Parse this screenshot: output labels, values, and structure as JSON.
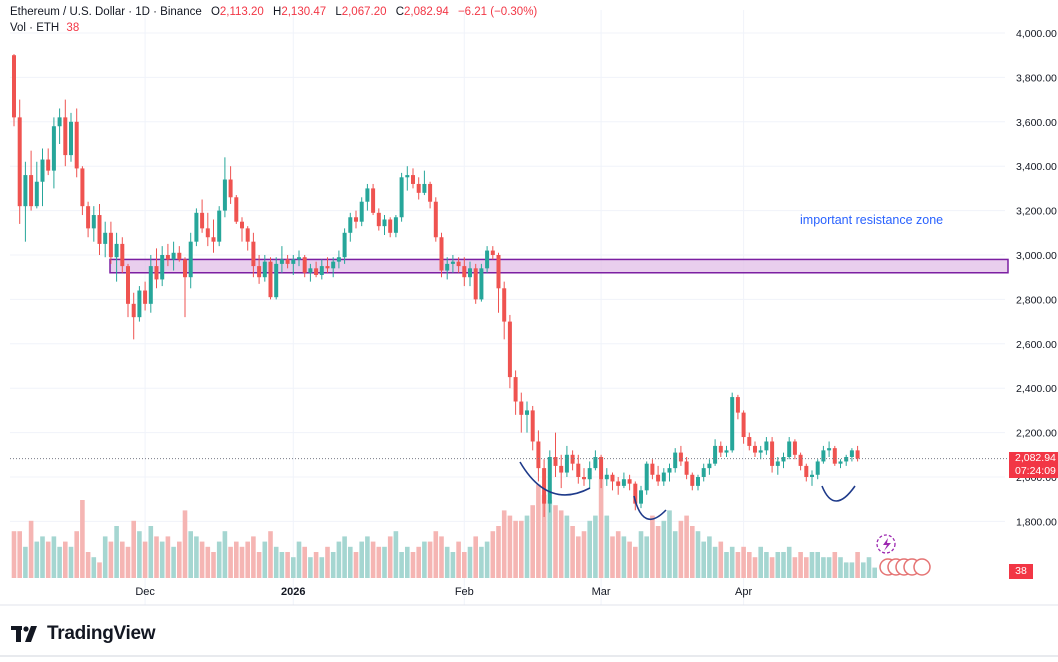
{
  "header": {
    "symbol": "Ethereum / U.S. Dollar · 1D · Binance",
    "o_label": "O",
    "o_value": "2,113.20",
    "h_label": "H",
    "h_value": "2,130.47",
    "l_label": "L",
    "l_value": "2,067.20",
    "c_label": "C",
    "c_value": "2,082.94",
    "change": "−6.21 (−0.30%)",
    "vol_label": "Vol · ETH",
    "vol_value": "38"
  },
  "annotation": "important resistance zone",
  "last_price_label": "2,082.94",
  "countdown_label": "07:24:09",
  "volume_label": "38",
  "brand": "TradingView",
  "colors": {
    "up": "#26a69a",
    "down": "#ef5350",
    "zone_border": "#7b1fa2",
    "zone_fill": "#e1bee7",
    "annotation": "#2962ff",
    "curve": "#1e3a8a"
  },
  "chart_data": {
    "type": "candlestick",
    "title": "Ethereum / U.S. Dollar · 1D · Binance",
    "y_axis": {
      "ticks": [
        "1,800.00",
        "2,000.00",
        "2,200.00",
        "2,400.00",
        "2,600.00",
        "2,800.00",
        "3,000.00",
        "3,200.00",
        "3,400.00",
        "3,600.00",
        "3,800.00",
        "4,000.00"
      ],
      "range": [
        1560,
        4020
      ]
    },
    "x_axis": {
      "labels": [
        "Dec",
        "2026",
        "Feb",
        "Mar",
        "Apr"
      ]
    },
    "grid": true,
    "series_ohlc": [
      [
        3900,
        3905,
        3580,
        3620
      ],
      [
        3620,
        3700,
        3140,
        3220
      ],
      [
        3220,
        3420,
        3060,
        3360
      ],
      [
        3360,
        3470,
        3200,
        3220
      ],
      [
        3220,
        3420,
        3210,
        3330
      ],
      [
        3330,
        3480,
        3220,
        3430
      ],
      [
        3430,
        3480,
        3360,
        3380
      ],
      [
        3380,
        3620,
        3300,
        3580
      ],
      [
        3580,
        3660,
        3500,
        3620
      ],
      [
        3620,
        3700,
        3400,
        3450
      ],
      [
        3450,
        3640,
        3420,
        3600
      ],
      [
        3600,
        3660,
        3350,
        3390
      ],
      [
        3390,
        3400,
        3180,
        3220
      ],
      [
        3220,
        3240,
        3080,
        3120
      ],
      [
        3120,
        3220,
        3060,
        3180
      ],
      [
        3180,
        3230,
        3000,
        3050
      ],
      [
        3050,
        3150,
        2990,
        3100
      ],
      [
        3100,
        3150,
        2960,
        2990
      ],
      [
        2990,
        3100,
        2880,
        3050
      ],
      [
        3050,
        3080,
        2920,
        2950
      ],
      [
        2950,
        2960,
        2720,
        2780
      ],
      [
        2780,
        2830,
        2620,
        2720
      ],
      [
        2720,
        2860,
        2700,
        2840
      ],
      [
        2840,
        2880,
        2750,
        2780
      ],
      [
        2780,
        3000,
        2740,
        2950
      ],
      [
        2950,
        3030,
        2850,
        2890
      ],
      [
        2890,
        3040,
        2860,
        3000
      ],
      [
        3000,
        3050,
        2950,
        2980
      ],
      [
        2980,
        3060,
        2930,
        3010
      ],
      [
        3010,
        3040,
        2970,
        2980
      ],
      [
        2980,
        2990,
        2720,
        2900
      ],
      [
        2900,
        3100,
        2850,
        3060
      ],
      [
        3060,
        3210,
        3040,
        3190
      ],
      [
        3190,
        3250,
        3100,
        3120
      ],
      [
        3120,
        3190,
        3040,
        3080
      ],
      [
        3080,
        3160,
        3010,
        3060
      ],
      [
        3060,
        3220,
        3040,
        3200
      ],
      [
        3200,
        3440,
        3170,
        3340
      ],
      [
        3340,
        3400,
        3230,
        3260
      ],
      [
        3260,
        3270,
        3140,
        3150
      ],
      [
        3150,
        3170,
        3060,
        3120
      ],
      [
        3120,
        3130,
        3020,
        3060
      ],
      [
        3060,
        3100,
        2900,
        2950
      ],
      [
        2950,
        3000,
        2870,
        2900
      ],
      [
        2900,
        3000,
        2880,
        2970
      ],
      [
        2970,
        2990,
        2800,
        2810
      ],
      [
        2810,
        2990,
        2800,
        2960
      ],
      [
        2960,
        3040,
        2920,
        2980
      ],
      [
        2980,
        3000,
        2940,
        2960
      ],
      [
        2960,
        3000,
        2910,
        2980
      ],
      [
        2980,
        3020,
        2950,
        2990
      ],
      [
        2990,
        3000,
        2900,
        2920
      ],
      [
        2920,
        2960,
        2880,
        2940
      ],
      [
        2940,
        2970,
        2900,
        2910
      ],
      [
        2910,
        2980,
        2890,
        2950
      ],
      [
        2950,
        2990,
        2920,
        2940
      ],
      [
        2940,
        2990,
        2900,
        2970
      ],
      [
        2970,
        3020,
        2940,
        2990
      ],
      [
        2990,
        3120,
        2960,
        3100
      ],
      [
        3100,
        3190,
        3060,
        3170
      ],
      [
        3170,
        3200,
        3120,
        3150
      ],
      [
        3150,
        3260,
        3130,
        3240
      ],
      [
        3240,
        3320,
        3200,
        3300
      ],
      [
        3300,
        3320,
        3180,
        3190
      ],
      [
        3190,
        3210,
        3110,
        3130
      ],
      [
        3130,
        3180,
        3090,
        3160
      ],
      [
        3160,
        3170,
        3080,
        3100
      ],
      [
        3100,
        3180,
        3080,
        3170
      ],
      [
        3170,
        3370,
        3150,
        3350
      ],
      [
        3350,
        3400,
        3290,
        3360
      ],
      [
        3360,
        3390,
        3300,
        3320
      ],
      [
        3320,
        3350,
        3250,
        3280
      ],
      [
        3280,
        3380,
        3270,
        3320
      ],
      [
        3320,
        3330,
        3210,
        3240
      ],
      [
        3240,
        3260,
        3060,
        3080
      ],
      [
        3080,
        3100,
        2900,
        2930
      ],
      [
        2930,
        2990,
        2890,
        2960
      ],
      [
        2960,
        3000,
        2920,
        2970
      ],
      [
        2970,
        2990,
        2920,
        2950
      ],
      [
        2950,
        2990,
        2860,
        2900
      ],
      [
        2900,
        2970,
        2860,
        2940
      ],
      [
        2940,
        2960,
        2780,
        2800
      ],
      [
        2800,
        2960,
        2790,
        2940
      ],
      [
        2940,
        3040,
        2920,
        3020
      ],
      [
        3020,
        3040,
        2980,
        3000
      ],
      [
        3000,
        3010,
        2740,
        2850
      ],
      [
        2850,
        2880,
        2620,
        2700
      ],
      [
        2700,
        2730,
        2400,
        2450
      ],
      [
        2450,
        2480,
        2280,
        2340
      ],
      [
        2340,
        2380,
        2200,
        2280
      ],
      [
        2280,
        2340,
        2200,
        2300
      ],
      [
        2300,
        2320,
        2120,
        2160
      ],
      [
        2160,
        2210,
        1980,
        2040
      ],
      [
        2040,
        2080,
        1820,
        1880
      ],
      [
        1880,
        2120,
        1840,
        2090
      ],
      [
        2090,
        2200,
        2000,
        2050
      ],
      [
        2050,
        2100,
        1950,
        2020
      ],
      [
        2020,
        2140,
        2000,
        2100
      ],
      [
        2100,
        2120,
        2030,
        2060
      ],
      [
        2060,
        2100,
        1970,
        2000
      ],
      [
        2000,
        2040,
        1960,
        1990
      ],
      [
        1990,
        2070,
        1950,
        2040
      ],
      [
        2040,
        2120,
        2030,
        2090
      ],
      [
        2090,
        2100,
        1950,
        1990
      ],
      [
        1990,
        2040,
        1960,
        2010
      ],
      [
        2010,
        2020,
        1940,
        1980
      ],
      [
        1980,
        2000,
        1920,
        1960
      ],
      [
        1960,
        2020,
        1950,
        1990
      ],
      [
        1990,
        2010,
        1940,
        1970
      ],
      [
        1970,
        1980,
        1850,
        1880
      ],
      [
        1880,
        1960,
        1860,
        1940
      ],
      [
        1940,
        2070,
        1920,
        2060
      ],
      [
        2060,
        2080,
        1990,
        2010
      ],
      [
        2010,
        2050,
        1960,
        1980
      ],
      [
        1980,
        2040,
        1960,
        2020
      ],
      [
        2020,
        2060,
        1980,
        2040
      ],
      [
        2040,
        2130,
        2020,
        2110
      ],
      [
        2110,
        2140,
        2050,
        2070
      ],
      [
        2070,
        2090,
        1990,
        2010
      ],
      [
        2010,
        2020,
        1940,
        1960
      ],
      [
        1960,
        2010,
        1940,
        2000
      ],
      [
        2000,
        2060,
        1980,
        2040
      ],
      [
        2040,
        2080,
        2010,
        2060
      ],
      [
        2060,
        2170,
        2050,
        2140
      ],
      [
        2140,
        2160,
        2090,
        2110
      ],
      [
        2110,
        2140,
        2090,
        2120
      ],
      [
        2120,
        2380,
        2110,
        2360
      ],
      [
        2360,
        2370,
        2260,
        2290
      ],
      [
        2290,
        2300,
        2150,
        2180
      ],
      [
        2180,
        2200,
        2120,
        2140
      ],
      [
        2140,
        2160,
        2090,
        2110
      ],
      [
        2110,
        2140,
        2080,
        2120
      ],
      [
        2120,
        2180,
        2100,
        2160
      ],
      [
        2160,
        2180,
        2020,
        2050
      ],
      [
        2050,
        2090,
        2010,
        2070
      ],
      [
        2070,
        2110,
        2040,
        2090
      ],
      [
        2090,
        2180,
        2080,
        2160
      ],
      [
        2160,
        2170,
        2080,
        2100
      ],
      [
        2100,
        2110,
        2030,
        2050
      ],
      [
        2050,
        2060,
        1980,
        2000
      ],
      [
        2000,
        2030,
        1960,
        2010
      ],
      [
        2010,
        2080,
        1990,
        2070
      ],
      [
        2070,
        2140,
        2060,
        2120
      ],
      [
        2120,
        2160,
        2090,
        2130
      ],
      [
        2130,
        2140,
        2050,
        2060
      ],
      [
        2060,
        2080,
        2040,
        2070
      ],
      [
        2070,
        2100,
        2050,
        2090
      ],
      [
        2090,
        2130,
        2070,
        2120
      ],
      [
        2120,
        2140,
        2070,
        2083
      ]
    ],
    "volume": [
      9,
      9,
      6,
      11,
      7,
      8,
      7,
      8,
      6,
      7,
      6,
      9,
      15,
      5,
      4,
      3,
      8,
      7,
      10,
      7,
      6,
      11,
      9,
      7,
      10,
      8,
      7,
      8,
      6,
      7,
      13,
      9,
      8,
      7,
      6,
      5,
      7,
      9,
      6,
      7,
      6,
      7,
      8,
      5,
      7,
      9,
      6,
      5,
      5,
      4,
      7,
      6,
      4,
      5,
      4,
      6,
      5,
      7,
      8,
      6,
      5,
      7,
      8,
      7,
      6,
      6,
      8,
      9,
      5,
      6,
      5,
      6,
      7,
      7,
      9,
      8,
      6,
      5,
      7,
      5,
      6,
      8,
      6,
      7,
      9,
      10,
      13,
      12,
      11,
      11,
      12,
      14,
      18,
      16,
      15,
      14,
      13,
      12,
      10,
      8,
      9,
      11,
      12,
      19,
      12,
      8,
      9,
      8,
      7,
      6,
      9,
      8,
      12,
      10,
      11,
      13,
      9,
      11,
      12,
      10,
      9,
      7,
      8,
      6,
      7,
      5,
      6,
      5,
      6,
      5,
      4,
      6,
      5,
      4,
      5,
      5,
      6,
      4,
      5,
      4,
      5,
      5,
      4,
      4,
      5,
      4,
      3,
      3,
      5,
      3,
      4,
      2
    ],
    "resistance_zone": {
      "low": 2920,
      "high": 2980
    },
    "x_label_candle_index": {
      "Dec": 23,
      "2026": 49,
      "Feb": 79,
      "Mar": 103,
      "Apr": 128
    },
    "last_price": 2082.94
  }
}
